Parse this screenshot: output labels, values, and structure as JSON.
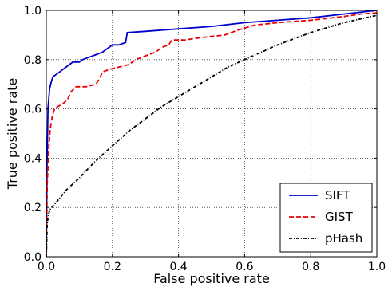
{
  "chart_data": {
    "type": "line",
    "title": "",
    "xlabel": "False positive rate",
    "ylabel": "True positive rate",
    "xlim": [
      0,
      1
    ],
    "ylim": [
      0,
      1
    ],
    "xticks": [
      "0.0",
      "0.2",
      "0.4",
      "0.6",
      "0.8",
      "1.0"
    ],
    "yticks": [
      "0.0",
      "0.2",
      "0.4",
      "0.6",
      "0.8",
      "1.0"
    ],
    "grid": true,
    "legend_position": "bottom-right",
    "series": [
      {
        "name": "SIFT",
        "color": "#0000cc",
        "style": "solid",
        "points": [
          [
            0,
            0
          ],
          [
            0.002,
            0.35
          ],
          [
            0.005,
            0.6
          ],
          [
            0.01,
            0.68
          ],
          [
            0.015,
            0.71
          ],
          [
            0.02,
            0.73
          ],
          [
            0.03,
            0.74
          ],
          [
            0.04,
            0.75
          ],
          [
            0.05,
            0.76
          ],
          [
            0.06,
            0.77
          ],
          [
            0.07,
            0.78
          ],
          [
            0.08,
            0.79
          ],
          [
            0.1,
            0.79
          ],
          [
            0.11,
            0.8
          ],
          [
            0.13,
            0.81
          ],
          [
            0.15,
            0.82
          ],
          [
            0.17,
            0.83
          ],
          [
            0.18,
            0.84
          ],
          [
            0.19,
            0.85
          ],
          [
            0.2,
            0.86
          ],
          [
            0.22,
            0.86
          ],
          [
            0.24,
            0.87
          ],
          [
            0.245,
            0.91
          ],
          [
            0.3,
            0.915
          ],
          [
            0.4,
            0.925
          ],
          [
            0.5,
            0.935
          ],
          [
            0.6,
            0.95
          ],
          [
            0.7,
            0.96
          ],
          [
            0.8,
            0.97
          ],
          [
            0.9,
            0.985
          ],
          [
            1.0,
            1.0
          ]
        ]
      },
      {
        "name": "GIST",
        "color": "#ee0000",
        "style": "dashed",
        "points": [
          [
            0,
            0
          ],
          [
            0.003,
            0.3
          ],
          [
            0.008,
            0.45
          ],
          [
            0.012,
            0.52
          ],
          [
            0.018,
            0.57
          ],
          [
            0.025,
            0.6
          ],
          [
            0.035,
            0.61
          ],
          [
            0.05,
            0.62
          ],
          [
            0.065,
            0.64
          ],
          [
            0.075,
            0.67
          ],
          [
            0.09,
            0.69
          ],
          [
            0.12,
            0.69
          ],
          [
            0.15,
            0.7
          ],
          [
            0.16,
            0.72
          ],
          [
            0.17,
            0.75
          ],
          [
            0.19,
            0.76
          ],
          [
            0.22,
            0.77
          ],
          [
            0.25,
            0.78
          ],
          [
            0.27,
            0.8
          ],
          [
            0.29,
            0.81
          ],
          [
            0.31,
            0.82
          ],
          [
            0.33,
            0.83
          ],
          [
            0.35,
            0.85
          ],
          [
            0.37,
            0.86
          ],
          [
            0.38,
            0.88
          ],
          [
            0.42,
            0.88
          ],
          [
            0.47,
            0.89
          ],
          [
            0.54,
            0.9
          ],
          [
            0.58,
            0.92
          ],
          [
            0.63,
            0.94
          ],
          [
            0.7,
            0.95
          ],
          [
            0.8,
            0.96
          ],
          [
            0.9,
            0.975
          ],
          [
            0.95,
            0.985
          ],
          [
            1.0,
            0.99
          ]
        ]
      },
      {
        "name": "pHash",
        "color": "#000000",
        "style": "dashdot",
        "points": [
          [
            0,
            0
          ],
          [
            0.003,
            0.14
          ],
          [
            0.01,
            0.19
          ],
          [
            0.03,
            0.22
          ],
          [
            0.06,
            0.27
          ],
          [
            0.1,
            0.32
          ],
          [
            0.15,
            0.39
          ],
          [
            0.2,
            0.45
          ],
          [
            0.25,
            0.51
          ],
          [
            0.3,
            0.56
          ],
          [
            0.35,
            0.61
          ],
          [
            0.4,
            0.65
          ],
          [
            0.45,
            0.69
          ],
          [
            0.5,
            0.73
          ],
          [
            0.55,
            0.77
          ],
          [
            0.6,
            0.8
          ],
          [
            0.7,
            0.86
          ],
          [
            0.8,
            0.91
          ],
          [
            0.9,
            0.95
          ],
          [
            1.0,
            0.98
          ]
        ]
      }
    ]
  }
}
